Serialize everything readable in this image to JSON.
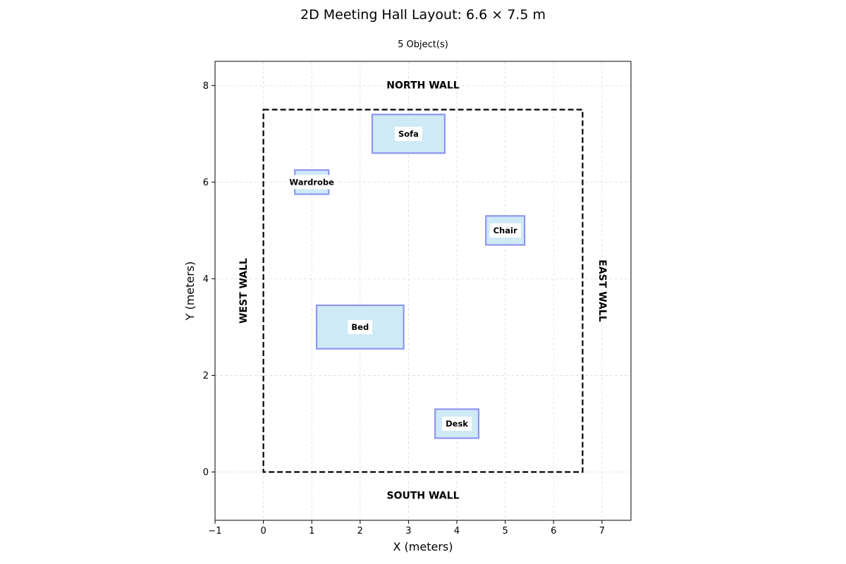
{
  "chart_data": {
    "type": "layout",
    "title": "2D Meeting Hall Layout: 6.6 × 7.5 m",
    "subtitle": "5 Object(s)",
    "xlabel": "X (meters)",
    "ylabel": "Y (meters)",
    "xlim": [
      -1,
      7.6
    ],
    "ylim": [
      -1,
      8.5
    ],
    "xticks": [
      -1,
      0,
      1,
      2,
      3,
      4,
      5,
      6,
      7
    ],
    "yticks": [
      0,
      2,
      4,
      6,
      8
    ],
    "grid": true,
    "room": {
      "width": 6.6,
      "depth": 7.5
    },
    "walls": {
      "north": "NORTH WALL",
      "south": "SOUTH WALL",
      "west": "WEST WALL",
      "east": "EAST WALL"
    },
    "objects": [
      {
        "name": "Sofa",
        "x": 2.25,
        "y": 6.6,
        "w": 1.5,
        "h": 0.8
      },
      {
        "name": "Wardrobe",
        "x": 0.65,
        "y": 5.75,
        "w": 0.7,
        "h": 0.5
      },
      {
        "name": "Chair",
        "x": 4.6,
        "y": 4.7,
        "w": 0.8,
        "h": 0.6
      },
      {
        "name": "Bed",
        "x": 1.1,
        "y": 2.55,
        "w": 1.8,
        "h": 0.9
      },
      {
        "name": "Desk",
        "x": 3.55,
        "y": 0.7,
        "w": 0.9,
        "h": 0.6
      }
    ],
    "colors": {
      "fill": "#cfeaf7",
      "stroke": "#8e96f0",
      "grid": "#dddddd",
      "room": "#000000"
    }
  }
}
